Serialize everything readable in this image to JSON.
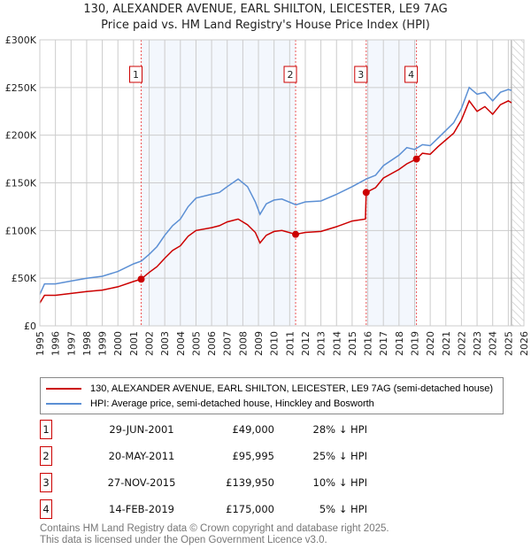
{
  "title": "130, ALEXANDER AVENUE, EARL SHILTON, LEICESTER, LE9 7AG",
  "subtitle": "Price paid vs. HM Land Registry's House Price Index (HPI)",
  "chart_data": {
    "type": "line",
    "xlim": [
      1995,
      2026
    ],
    "ylim": [
      0,
      300000
    ],
    "yticks": [
      0,
      50000,
      100000,
      150000,
      200000,
      250000,
      300000
    ],
    "ytick_labels": [
      "£0",
      "£50K",
      "£100K",
      "£150K",
      "£200K",
      "£250K",
      "£300K"
    ],
    "xticks": [
      "1995",
      "1996",
      "1997",
      "1998",
      "1999",
      "2000",
      "2001",
      "2002",
      "2003",
      "2004",
      "2005",
      "2006",
      "2007",
      "2008",
      "2009",
      "2010",
      "2011",
      "2012",
      "2013",
      "2014",
      "2015",
      "2016",
      "2017",
      "2018",
      "2019",
      "2020",
      "2021",
      "2022",
      "2023",
      "2024",
      "2025",
      "2026"
    ],
    "grid": true,
    "data_end": 2025.2,
    "series": [
      {
        "name": "130, ALEXANDER AVENUE, EARL SHILTON, LEICESTER, LE9 7AG (semi-detached house)",
        "color": "#cc0000",
        "x": [
          1995.0,
          1995.3,
          1996,
          1997,
          1998,
          1999,
          2000,
          2001,
          2001.49,
          2002,
          2002.5,
          2003,
          2003.5,
          2004,
          2004.5,
          2005,
          2006,
          2006.5,
          2007,
          2007.7,
          2008.3,
          2008.8,
          2009.1,
          2009.5,
          2010,
          2010.5,
          2011.38,
          2012,
          2013,
          2014,
          2015,
          2015.85,
          2015.9,
          2016.5,
          2017,
          2018,
          2018.5,
          2019.12,
          2019.5,
          2020,
          2020.5,
          2021,
          2021.5,
          2022,
          2022.5,
          2023,
          2023.5,
          2024,
          2024.5,
          2025,
          2025.2
        ],
        "y": [
          24000,
          32000,
          32000,
          34000,
          36000,
          37500,
          41000,
          46500,
          49000,
          56000,
          62000,
          71000,
          79000,
          84000,
          94000,
          100000,
          103000,
          105000,
          109000,
          112000,
          106000,
          98000,
          87000,
          95000,
          99000,
          100000,
          95995,
          98000,
          99000,
          104000,
          110000,
          112000,
          139950,
          145000,
          155000,
          164000,
          170000,
          175000,
          181000,
          180000,
          188000,
          195000,
          202000,
          216000,
          236000,
          225000,
          230000,
          222000,
          232000,
          236000,
          234000
        ]
      },
      {
        "name": "HPI: Average price, semi-detached house, Hinckley and Bosworth",
        "color": "#5b8fd4",
        "x": [
          1995.0,
          1995.3,
          1996,
          1997,
          1998,
          1999,
          2000,
          2001,
          2001.5,
          2002,
          2002.5,
          2003,
          2003.5,
          2004,
          2004.5,
          2005,
          2006,
          2006.5,
          2007,
          2007.7,
          2008.3,
          2008.8,
          2009.1,
          2009.5,
          2010,
          2010.5,
          2011.4,
          2012,
          2013,
          2014,
          2015,
          2015.9,
          2016.5,
          2017,
          2018,
          2018.5,
          2019,
          2019.5,
          2020,
          2020.5,
          2021,
          2021.5,
          2022,
          2022.5,
          2023,
          2023.5,
          2024,
          2024.5,
          2025,
          2025.2
        ],
        "y": [
          33000,
          44000,
          44000,
          47000,
          50000,
          52000,
          57000,
          65000,
          68000,
          75000,
          83000,
          95000,
          105000,
          112000,
          125000,
          134000,
          138000,
          140000,
          146000,
          154000,
          146000,
          130000,
          117000,
          128000,
          132000,
          133000,
          127000,
          130000,
          131000,
          138000,
          146000,
          154000,
          158000,
          168000,
          179000,
          187000,
          185000,
          190000,
          189000,
          197000,
          205000,
          213000,
          228000,
          250000,
          243000,
          245000,
          236000,
          245000,
          248000,
          247000
        ]
      }
    ],
    "sales": [
      {
        "n": "1",
        "x": 2001.49,
        "y": 49000,
        "date": "29-JUN-2001",
        "price": "£49,000",
        "hpi": "28% ↓ HPI"
      },
      {
        "n": "2",
        "x": 2011.38,
        "y": 95995,
        "date": "20-MAY-2011",
        "price": "£95,995",
        "hpi": "25% ↓ HPI"
      },
      {
        "n": "3",
        "x": 2015.9,
        "y": 139950,
        "date": "27-NOV-2015",
        "price": "£139,950",
        "hpi": "10% ↓ HPI"
      },
      {
        "n": "4",
        "x": 2019.12,
        "y": 175000,
        "date": "14-FEB-2019",
        "price": "£175,000",
        "hpi": "5% ↓ HPI"
      }
    ]
  },
  "legend": {
    "property": "130, ALEXANDER AVENUE, EARL SHILTON, LEICESTER, LE9 7AG (semi-detached house)",
    "hpi": "HPI: Average price, semi-detached house, Hinckley and Bosworth"
  },
  "footer": {
    "line1": "Contains HM Land Registry data © Crown copyright and database right 2025.",
    "line2": "This data is licensed under the Open Government Licence v3.0."
  }
}
